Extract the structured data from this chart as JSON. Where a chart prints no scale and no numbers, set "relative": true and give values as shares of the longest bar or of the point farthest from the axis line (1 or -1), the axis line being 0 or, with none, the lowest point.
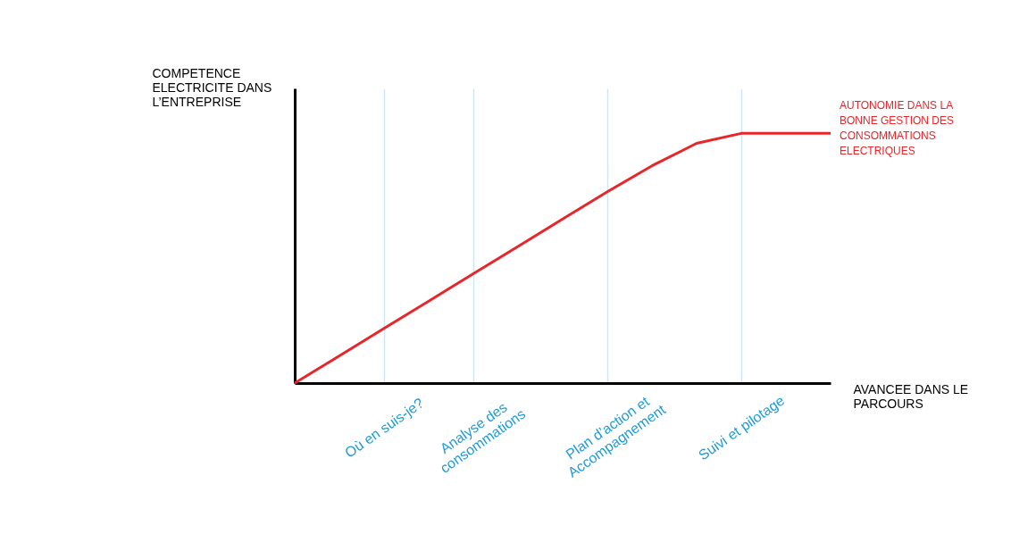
{
  "chart_data": {
    "type": "line",
    "relative": true,
    "tick_labels": "x",
    "marker": "none",
    "line_style": "solid",
    "legend": false,
    "grid": "x",
    "ylabel": "COMPETENCE\nELECTRICITE DANS\nL’ENTREPRISE",
    "xlabel": "AVANCEE DANS LE\nPARCOURS",
    "categories": [
      null,
      null,
      "Où en suis-je?",
      null,
      "Analyse des\nconsommations",
      null,
      null,
      "Plan d’action et\nAccompagnement",
      null,
      null,
      "Suivi et pilotage",
      null,
      null
    ],
    "series": [
      {
        "color": "#e8262a",
        "values": [
          0,
          0.109,
          0.219,
          0.328,
          0.438,
          0.547,
          0.657,
          0.766,
          0.87,
          0.96,
          1,
          1,
          1
        ]
      }
    ],
    "annotations": [
      "AUTONOMIE DANS LA\nBONNE GESTION DES\nCONSOMMATIONS\nELECTRIQUES"
    ]
  }
}
